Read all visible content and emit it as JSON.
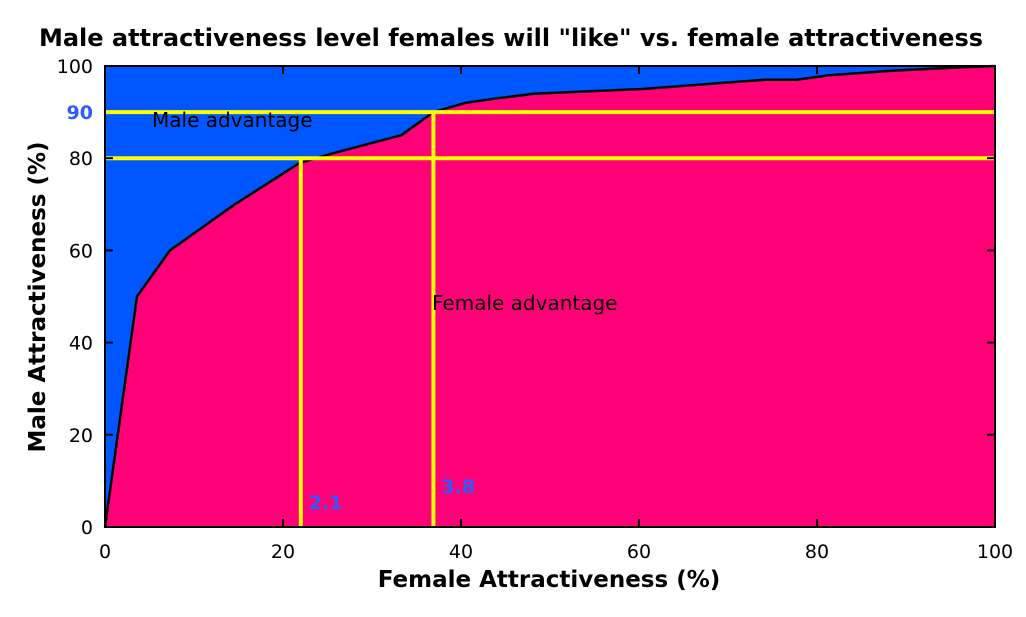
{
  "chart_data": {
    "type": "area",
    "title": "Male attractiveness level females will \"like\" vs. female attractiveness",
    "xlabel": "Female Attractiveness (%)",
    "ylabel": "Male Attractiveness (%)",
    "xlim": [
      0,
      100
    ],
    "ylim": [
      0,
      100
    ],
    "x_ticks": [
      "0",
      "20",
      "40",
      "60",
      "80",
      "100"
    ],
    "y_ticks": [
      "0",
      "20",
      "40",
      "60",
      "80",
      "100"
    ],
    "grid": false,
    "legend": "none",
    "boundary_curve": {
      "x": [
        0,
        3.6,
        7.3,
        14.6,
        21.9,
        25.5,
        33.3,
        36.9,
        40.5,
        44.1,
        48.2,
        60.2,
        74.1,
        77.7,
        81.4,
        88.7,
        96.0,
        100
      ],
      "y": [
        0,
        50,
        60,
        70,
        79,
        81,
        85,
        90,
        92,
        93,
        94,
        95,
        97,
        97,
        98,
        99,
        99.7,
        100
      ]
    },
    "regions": [
      {
        "label": "Male advantage",
        "color": "#0057ff"
      },
      {
        "label": "Female advantage",
        "color": "#ff0077"
      }
    ],
    "reference_lines": {
      "color": "#ffff00",
      "horizontal": [
        {
          "y": 90,
          "label": "90"
        },
        {
          "y": 80,
          "label": ""
        }
      ],
      "vertical": [
        {
          "x": 22,
          "y_top": 80,
          "label": "2.1"
        },
        {
          "x": 36.9,
          "y_top": 90,
          "label": "3.8"
        }
      ]
    },
    "colors": {
      "male_region": "#0057ff",
      "female_region": "#ff0077",
      "reference_line": "#ffff00",
      "marker_text": "#2a5cff"
    }
  }
}
